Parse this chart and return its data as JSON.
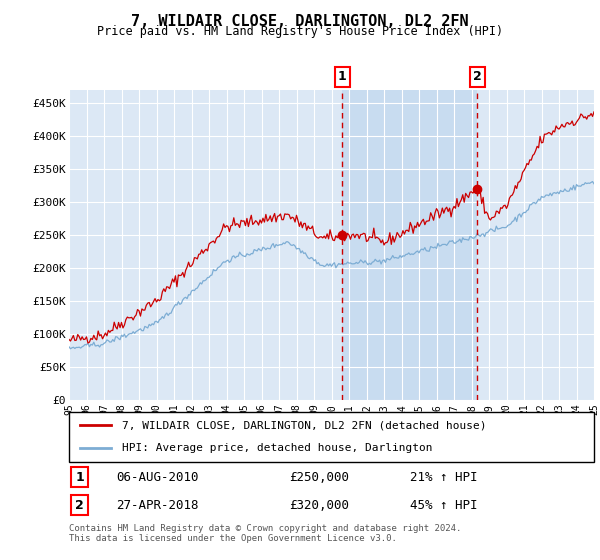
{
  "title": "7, WILDAIR CLOSE, DARLINGTON, DL2 2FN",
  "subtitle": "Price paid vs. HM Land Registry's House Price Index (HPI)",
  "ylim": [
    0,
    470000
  ],
  "yticks": [
    0,
    50000,
    100000,
    150000,
    200000,
    250000,
    300000,
    350000,
    400000,
    450000
  ],
  "ytick_labels": [
    "£0",
    "£50K",
    "£100K",
    "£150K",
    "£200K",
    "£250K",
    "£300K",
    "£350K",
    "£400K",
    "£450K"
  ],
  "background_color": "#ffffff",
  "plot_bg_color": "#dce8f5",
  "shaded_region_color": "#c8dcf0",
  "grid_color": "#ffffff",
  "red_line_color": "#cc0000",
  "blue_line_color": "#7dadd4",
  "marker1_x": 2010.6,
  "marker2_x": 2018.33,
  "marker1_value": 250000,
  "marker2_value": 320000,
  "legend_line1": "7, WILDAIR CLOSE, DARLINGTON, DL2 2FN (detached house)",
  "legend_line2": "HPI: Average price, detached house, Darlington",
  "footnote": "Contains HM Land Registry data © Crown copyright and database right 2024.\nThis data is licensed under the Open Government Licence v3.0.",
  "xstart_year": 1995,
  "xend_year": 2025
}
